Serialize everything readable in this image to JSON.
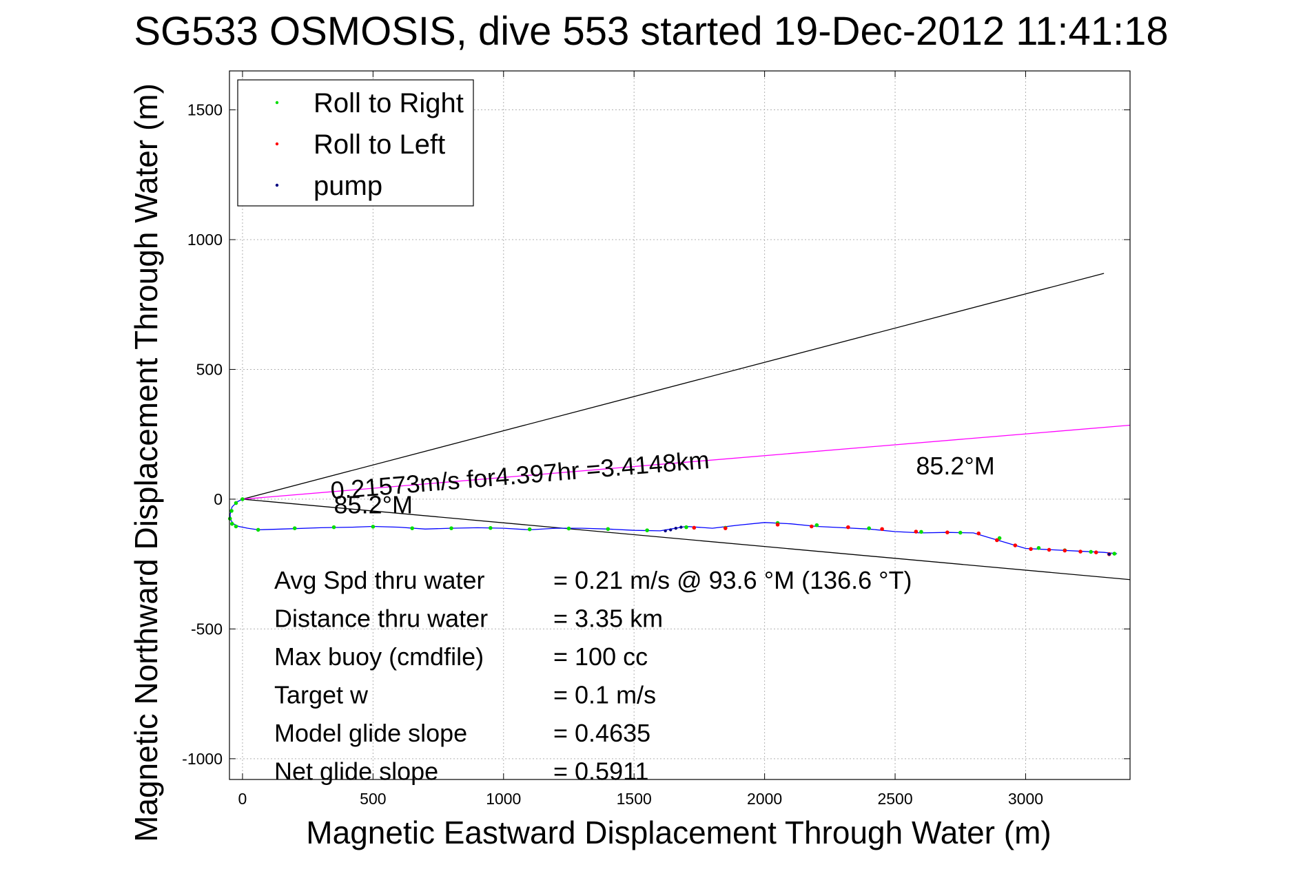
{
  "chart_data": {
    "type": "scatter",
    "title": "SG533 OSMOSIS, dive 553 started 19-Dec-2012 11:41:18",
    "xlabel": "Magnetic Eastward Displacement Through Water (m)",
    "ylabel": "Magnetic Northward Displacement Through Water (m)",
    "xlim": [
      -50,
      3400
    ],
    "ylim": [
      -1080,
      1650
    ],
    "xticks": [
      0,
      500,
      1000,
      1500,
      2000,
      2500,
      3000
    ],
    "yticks": [
      -1000,
      -500,
      0,
      500,
      1000,
      1500
    ],
    "grid": true,
    "legend_position": "top-left",
    "legend": [
      {
        "label": "Roll to Right",
        "color": "#00dd00"
      },
      {
        "label": "Roll to Left",
        "color": "#ff0000"
      },
      {
        "label": "pump",
        "color": "#000080"
      }
    ],
    "track": {
      "color": "#0000ff",
      "x": [
        0,
        -20,
        -40,
        -48,
        -45,
        -35,
        -15,
        20,
        60,
        150,
        300,
        420,
        500,
        600,
        700,
        800,
        900,
        1000,
        1100,
        1200,
        1300,
        1400,
        1500,
        1600,
        1640,
        1700,
        1800,
        1900,
        2000,
        2100,
        2200,
        2300,
        2400,
        2500,
        2600,
        2700,
        2800,
        2850,
        2900,
        2950,
        3000,
        3100,
        3200,
        3300,
        3350
      ],
      "y": [
        0,
        -10,
        -30,
        -60,
        -80,
        -95,
        -105,
        -112,
        -118,
        -115,
        -110,
        -108,
        -105,
        -108,
        -115,
        -112,
        -110,
        -112,
        -118,
        -112,
        -112,
        -115,
        -120,
        -122,
        -115,
        -105,
        -112,
        -100,
        -90,
        -95,
        -105,
        -110,
        -115,
        -125,
        -130,
        -128,
        -130,
        -145,
        -160,
        -175,
        -190,
        -195,
        -200,
        -205,
        -210
      ]
    },
    "roll_right": {
      "x": [
        0,
        -25,
        -42,
        -48,
        -40,
        -25,
        60,
        200,
        350,
        500,
        650,
        800,
        950,
        1100,
        1250,
        1400,
        1550,
        1700,
        1850,
        2050,
        2200,
        2400,
        2600,
        2750,
        2900,
        3050,
        3150,
        3250,
        3340
      ],
      "y": [
        0,
        -15,
        -45,
        -75,
        -95,
        -105,
        -118,
        -112,
        -108,
        -106,
        -112,
        -112,
        -111,
        -116,
        -113,
        -115,
        -120,
        -108,
        -110,
        -92,
        -100,
        -112,
        -126,
        -129,
        -150,
        -188,
        -197,
        -203,
        -210
      ]
    },
    "roll_left": {
      "x": [
        1730,
        1850,
        2050,
        2180,
        2320,
        2450,
        2580,
        2700,
        2820,
        2890,
        2960,
        3020,
        3090,
        3150,
        3210,
        3270,
        3320
      ],
      "y": [
        -110,
        -112,
        -98,
        -105,
        -108,
        -115,
        -125,
        -128,
        -132,
        -158,
        -178,
        -192,
        -195,
        -198,
        -202,
        -205,
        -212
      ]
    },
    "pump": {
      "x": [
        1620,
        1640,
        1660,
        1680,
        3320
      ],
      "y": [
        -122,
        -118,
        -112,
        -108,
        -212
      ]
    },
    "lines": [
      {
        "name": "upper-bound",
        "color": "#000000",
        "x": [
          0,
          3300
        ],
        "y": [
          0,
          870
        ]
      },
      {
        "name": "lower-bound",
        "color": "#000000",
        "x": [
          0,
          3400
        ],
        "y": [
          0,
          -310
        ]
      },
      {
        "name": "heading",
        "color": "#ff00ff",
        "x": [
          0,
          3400
        ],
        "y": [
          0,
          285
        ]
      }
    ],
    "annotations": [
      {
        "text": "0.21573m/s for4.397hr =3.4148km",
        "x": 340,
        "y": 0,
        "rotate": -4.7
      },
      {
        "text": "85.2°M",
        "x": 2580,
        "y": 95,
        "rotate": 0
      },
      {
        "text": "85.2°M",
        "x": 350,
        "y": -55,
        "rotate": 0
      }
    ],
    "stats": [
      {
        "label": "Avg Spd thru water",
        "value": "=  0.21 m/s @  93.6 °M (136.6 °T)"
      },
      {
        "label": "Distance thru water",
        "value": "=  3.35 km"
      },
      {
        "label": "Max buoy (cmdfile)",
        "value": "= 100 cc"
      },
      {
        "label": "Target w",
        "value": "= 0.1 m/s"
      },
      {
        "label": "Model glide slope",
        "value": "= 0.4635"
      },
      {
        "label": "Net glide slope",
        "value": "= 0.5911"
      }
    ]
  }
}
